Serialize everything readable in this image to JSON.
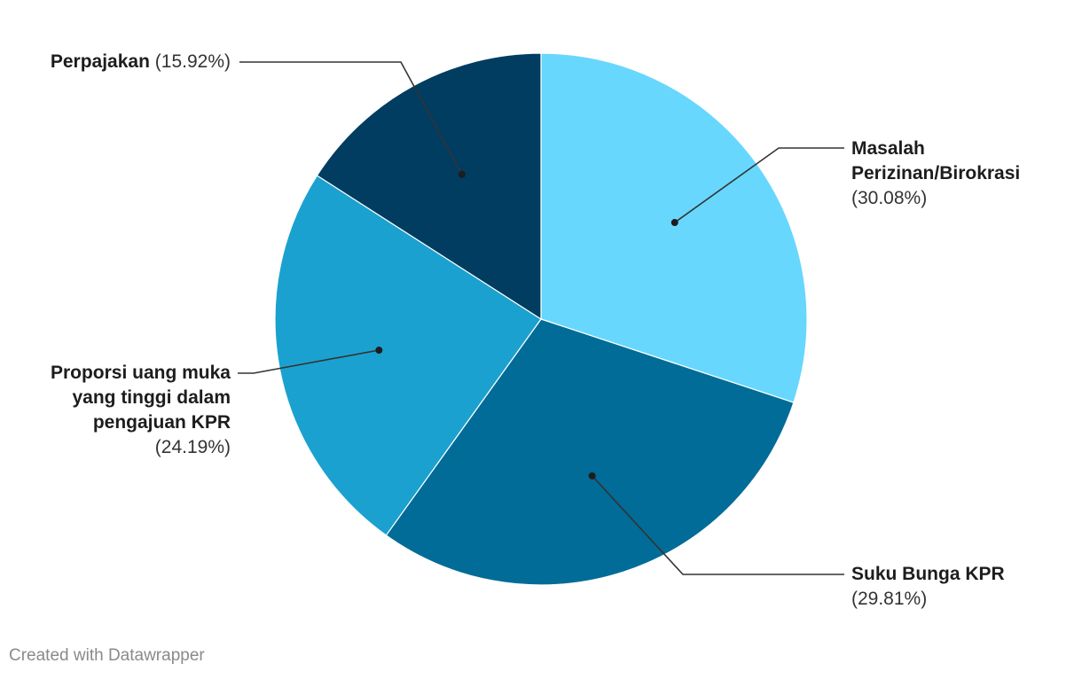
{
  "chart_data": {
    "type": "pie",
    "slices": [
      {
        "name": "Masalah Perizinan/Birokrasi",
        "name_lines": [
          "Masalah",
          "Perizinan/Birokrasi"
        ],
        "pct_label": "(30.08%)",
        "value": 30.08,
        "color": "#67d7fd"
      },
      {
        "name": "Suku Bunga KPR",
        "name_lines": [
          "Suku Bunga KPR"
        ],
        "pct_label": "(29.81%)",
        "value": 29.81,
        "color": "#016c97"
      },
      {
        "name": "Proporsi uang muka yang tinggi dalam pengajuan KPR",
        "name_lines": [
          "Proporsi uang muka",
          "yang tinggi dalam",
          "pengajuan KPR"
        ],
        "pct_label": "(24.19%)",
        "value": 24.19,
        "color": "#1ba1cf"
      },
      {
        "name": "Perpajakan",
        "name_lines": [
          "Perpajakan"
        ],
        "pct_label": "(15.92%)",
        "value": 15.92,
        "color": "#003d61"
      }
    ]
  },
  "footer": {
    "credit": "Created with Datawrapper"
  }
}
